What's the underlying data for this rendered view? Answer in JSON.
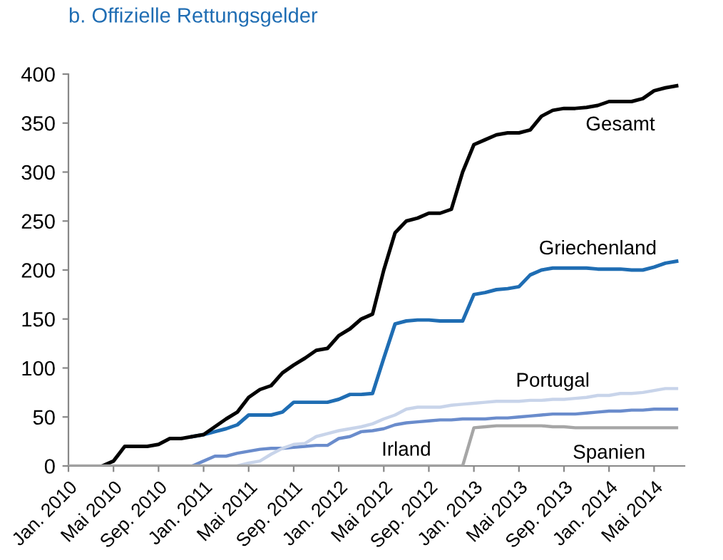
{
  "chart_data": {
    "type": "line",
    "title": "b. Offizielle Rettungsgelder",
    "categories": [
      "Jan. 2010",
      null,
      null,
      null,
      "Mai 2010",
      null,
      null,
      null,
      "Sep. 2010",
      null,
      null,
      null,
      "Jan. 2011",
      null,
      null,
      null,
      "Mai 2011",
      null,
      null,
      null,
      "Sep. 2011",
      null,
      null,
      null,
      "Jan. 2012",
      null,
      null,
      null,
      "Mai 2012",
      null,
      null,
      null,
      "Sep. 2012",
      null,
      null,
      null,
      "Jan. 2013",
      null,
      null,
      null,
      "Mai 2013",
      null,
      null,
      null,
      "Sep. 2013",
      null,
      null,
      null,
      "Jan. 2014",
      null,
      null,
      null,
      "Mai 2014",
      null,
      null
    ],
    "ylim": [
      0,
      400
    ],
    "yticks": [
      0,
      50,
      100,
      150,
      200,
      250,
      300,
      350,
      400
    ],
    "grid": false,
    "legend": false,
    "marker": "none",
    "line_style": "solid",
    "series": [
      {
        "name": "Gesamt",
        "color": "#000000",
        "values": [
          null,
          null,
          null,
          0,
          5,
          20,
          20,
          20,
          22,
          28,
          28,
          30,
          32,
          40,
          48,
          55,
          70,
          78,
          82,
          95,
          103,
          110,
          118,
          120,
          133,
          140,
          150,
          155,
          200,
          238,
          250,
          253,
          258,
          258,
          262,
          300,
          328,
          333,
          338,
          340,
          340,
          343,
          357,
          363,
          365,
          365,
          366,
          368,
          372,
          372,
          372,
          375,
          383,
          386,
          388
        ]
      },
      {
        "name": "Griechenland",
        "color": "#1f6db3",
        "values": [
          null,
          null,
          null,
          null,
          null,
          null,
          null,
          null,
          null,
          null,
          null,
          30,
          32,
          35,
          38,
          42,
          52,
          52,
          52,
          55,
          65,
          65,
          65,
          65,
          68,
          73,
          73,
          74,
          110,
          145,
          148,
          149,
          149,
          148,
          148,
          148,
          175,
          177,
          180,
          181,
          183,
          195,
          200,
          202,
          202,
          202,
          202,
          201,
          201,
          201,
          200,
          200,
          203,
          207,
          209
        ]
      },
      {
        "name": "Portugal",
        "color": "#c8d4ea",
        "values": [
          null,
          null,
          null,
          null,
          null,
          null,
          null,
          null,
          null,
          null,
          null,
          null,
          null,
          null,
          null,
          0,
          3,
          5,
          12,
          18,
          22,
          23,
          30,
          33,
          36,
          38,
          40,
          43,
          48,
          52,
          58,
          60,
          60,
          60,
          62,
          63,
          64,
          65,
          66,
          66,
          66,
          67,
          67,
          68,
          68,
          69,
          70,
          72,
          72,
          74,
          74,
          75,
          77,
          79,
          79
        ]
      },
      {
        "name": "Irland",
        "color": "#6a8ccc",
        "values": [
          null,
          null,
          null,
          null,
          null,
          null,
          null,
          null,
          null,
          null,
          null,
          0,
          5,
          10,
          10,
          13,
          15,
          17,
          18,
          18,
          19,
          20,
          21,
          21,
          28,
          30,
          35,
          36,
          38,
          42,
          44,
          45,
          46,
          47,
          47,
          48,
          48,
          48,
          49,
          49,
          50,
          51,
          52,
          53,
          53,
          53,
          54,
          55,
          56,
          56,
          57,
          57,
          58,
          58,
          58
        ]
      },
      {
        "name": "Spanien",
        "color": "#a6a6a6",
        "values": [
          0,
          0,
          0,
          0,
          0,
          0,
          0,
          0,
          0,
          0,
          0,
          0,
          0,
          0,
          0,
          0,
          0,
          0,
          0,
          0,
          0,
          0,
          0,
          0,
          0,
          0,
          0,
          0,
          0,
          0,
          0,
          0,
          0,
          0,
          0,
          0,
          39,
          40,
          41,
          41,
          41,
          41,
          41,
          40,
          40,
          39,
          39,
          39,
          39,
          39,
          39,
          39,
          39,
          39,
          39
        ]
      }
    ]
  }
}
